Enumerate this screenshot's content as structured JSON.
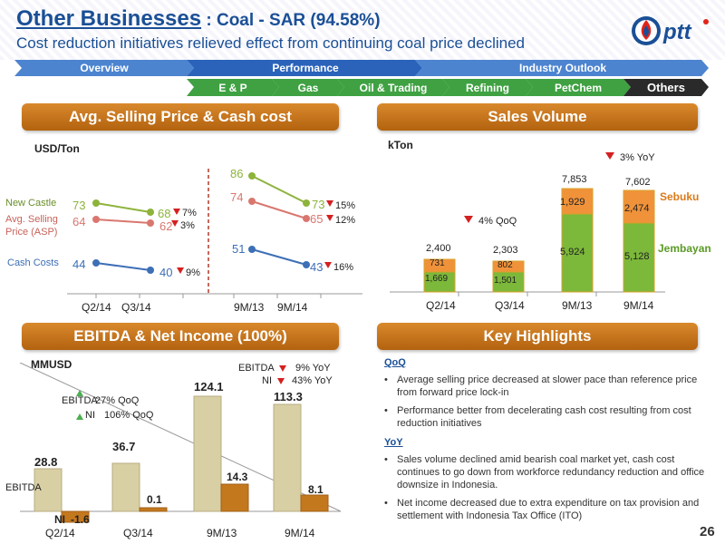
{
  "header": {
    "title_bu": "Other Businesses",
    "title_rest": " : Coal - SAR (94.58%)",
    "subtitle": "Cost reduction initiatives relieved effect from continuing coal price declined",
    "logo_text": "pttr"
  },
  "nav": {
    "top": [
      "Overview",
      "Performance",
      "Industry Outlook"
    ],
    "sub": [
      "E & P",
      "Gas",
      "Oil & Trading",
      "Refining",
      "PetChem",
      "Others"
    ],
    "active": "Others"
  },
  "sections": {
    "asp": "Avg. Selling Price & Cash cost",
    "sales": "Sales Volume",
    "ebitda": "EBITDA & Net Income (100%)",
    "highlights": "Key Highlights"
  },
  "asp_chart": {
    "unit": "USD/Ton",
    "series_labels": {
      "nc": "New Castle",
      "asp1": "Avg. Selling",
      "asp2": "Price (ASP)",
      "cc": "Cash Costs"
    },
    "left": {
      "categories": [
        "Q2/14",
        "Q3/14"
      ],
      "nc": [
        "73",
        "68"
      ],
      "asp": [
        "64",
        "62"
      ],
      "cc": [
        "44",
        "40"
      ],
      "chg": {
        "nc": "7%",
        "asp": "3%",
        "cc": "9%"
      }
    },
    "right": {
      "categories": [
        "9M/13",
        "9M/14"
      ],
      "nc": [
        "86",
        "73"
      ],
      "asp": [
        "74",
        "65"
      ],
      "cc": [
        "51",
        "43"
      ],
      "chg": {
        "nc": "15%",
        "asp": "12%",
        "cc": "16%"
      }
    }
  },
  "sales_chart": {
    "unit": "kTon",
    "categories": [
      "Q2/14",
      "Q3/14",
      "9M/13",
      "9M/14"
    ],
    "totals": [
      "2,400",
      "2,303",
      "7,853",
      "7,602"
    ],
    "jembayan": [
      "1,669",
      "1,501",
      "5,924",
      "5,128"
    ],
    "sebuku": [
      "731",
      "802",
      "1,929",
      "2,474"
    ],
    "legend_top": "Sebuku",
    "legend_bottom": "Jembayan",
    "qoq": "4% QoQ",
    "yoy": "3% YoY"
  },
  "ebitda_chart": {
    "unit": "MMUSD",
    "categories": [
      "Q2/14",
      "Q3/14",
      "9M/13",
      "9M/14"
    ],
    "ebitda": [
      "28.8",
      "36.7",
      "124.1",
      "113.3"
    ],
    "ni": [
      "-1.6",
      "0.1",
      "14.3",
      "8.1"
    ],
    "label_ebitda": "EBITDA",
    "label_ni": "NI",
    "qoq_ebitda": "27% QoQ",
    "qoq_ni": "106% QoQ",
    "yoy_ebitda": "9% YoY",
    "yoy_ni": "43% YoY"
  },
  "chart_data": [
    {
      "type": "line",
      "categories": [
        "Q2/14",
        "Q3/14",
        "9M/13",
        "9M/14"
      ],
      "series": [
        {
          "name": "New Castle",
          "values": [
            73,
            68,
            86,
            73
          ]
        },
        {
          "name": "Avg. Selling Price (ASP)",
          "values": [
            64,
            62,
            74,
            65
          ]
        },
        {
          "name": "Cash Costs",
          "values": [
            44,
            40,
            51,
            43
          ]
        }
      ],
      "ylabel": "USD/Ton"
    },
    {
      "type": "bar",
      "categories": [
        "Q2/14",
        "Q3/14",
        "9M/13",
        "9M/14"
      ],
      "series": [
        {
          "name": "Jembayan",
          "values": [
            1669,
            1501,
            5924,
            5128
          ]
        },
        {
          "name": "Sebuku",
          "values": [
            731,
            802,
            1929,
            2474
          ]
        }
      ],
      "totals": [
        2400,
        2303,
        7853,
        7602
      ],
      "ylabel": "kTon"
    },
    {
      "type": "bar",
      "categories": [
        "Q2/14",
        "Q3/14",
        "9M/13",
        "9M/14"
      ],
      "series": [
        {
          "name": "EBITDA",
          "values": [
            28.8,
            36.7,
            124.1,
            113.3
          ]
        },
        {
          "name": "NI",
          "values": [
            -1.6,
            0.1,
            14.3,
            8.1
          ]
        }
      ],
      "ylabel": "MMUSD"
    }
  ],
  "highlights": {
    "qoq_head": "QoQ",
    "qoq": [
      "Average selling price decreased at slower pace than reference price from forward price lock-in",
      "Performance better from decelerating cash cost resulting from cost reduction initiatives"
    ],
    "yoy_head": "YoY",
    "yoy": [
      "Sales volume declined amid bearish coal market yet, cash cost continues to go down from workforce redundancy reduction and office downsize in Indonesia.",
      "Net income decreased due to extra expenditure on tax provision and settlement with Indonesia Tax Office (ITO)"
    ]
  },
  "page_number": "26",
  "colors": {
    "brand_blue": "#1a4f96",
    "nc_green": "#8db33a",
    "asp_red": "#d9776f",
    "cc_blue": "#3d6fb6",
    "jembayan": "#7cb83a",
    "sebuku": "#f0923a",
    "ebitda_bar": "#d8cfa5",
    "ni_bar": "#c4781e",
    "down_red": "#d42020",
    "up_green": "#4caf50"
  }
}
